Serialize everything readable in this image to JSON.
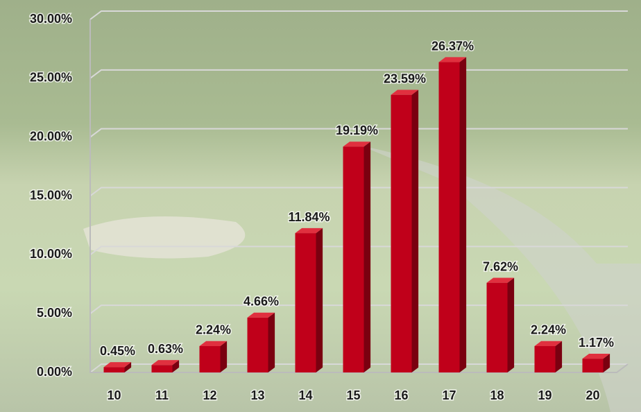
{
  "chart_data": {
    "type": "bar",
    "categories": [
      "10",
      "11",
      "12",
      "13",
      "14",
      "15",
      "16",
      "17",
      "18",
      "19",
      "20"
    ],
    "values": [
      0.45,
      0.63,
      2.24,
      4.66,
      11.84,
      19.19,
      23.59,
      26.37,
      7.62,
      2.24,
      1.17
    ],
    "value_labels": [
      "0.45%",
      "0.63%",
      "2.24%",
      "4.66%",
      "11.84%",
      "19.19%",
      "23.59%",
      "26.37%",
      "7.62%",
      "2.24%",
      "1.17%"
    ],
    "color": "#c0001a",
    "ylim": [
      0,
      30
    ],
    "yticks": [
      {
        "value": 0,
        "label": "0.00%"
      },
      {
        "value": 5,
        "label": "5.00%"
      },
      {
        "value": 10,
        "label": "10.00%"
      },
      {
        "value": 15,
        "label": "15.00%"
      },
      {
        "value": 20,
        "label": "20.00%"
      },
      {
        "value": 25,
        "label": "25.00%"
      },
      {
        "value": 30,
        "label": "30.00%"
      }
    ],
    "grid": true
  }
}
